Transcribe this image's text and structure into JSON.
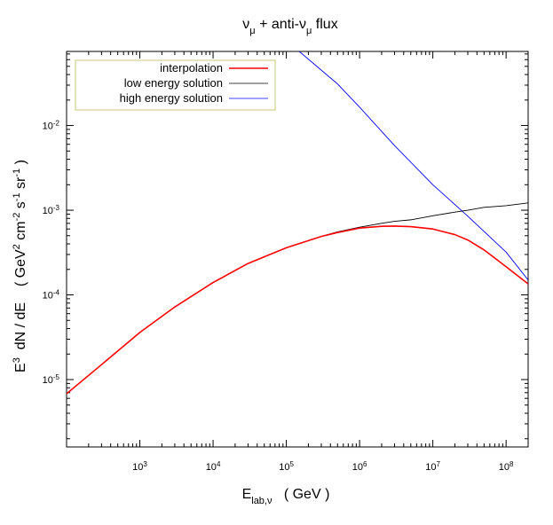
{
  "chart_data": {
    "type": "line",
    "title": {
      "main": "ν",
      "sub1": "μ",
      "mid": " + anti-ν",
      "sub2": "μ",
      "tail": "  flux"
    },
    "xlabel": {
      "main": "E",
      "sub": "lab,ν",
      "tail": "   ( GeV )"
    },
    "ylabel": {
      "p1": "E",
      "s1": "3",
      "p2": "  dN / dE    ( GeV",
      "s2": "2",
      "p3": " cm",
      "s3": "-2",
      "p4": " s",
      "s4": "-1",
      "p5": " sr",
      "s5": "-1",
      "p6": " )"
    },
    "xscale": "log",
    "yscale": "log",
    "xlim": [
      100,
      200000000
    ],
    "ylim": [
      1.6e-06,
      0.075
    ],
    "x_ticks": [
      {
        "value": 1000,
        "base": "10",
        "exp": "3"
      },
      {
        "value": 10000,
        "base": "10",
        "exp": "4"
      },
      {
        "value": 100000,
        "base": "10",
        "exp": "5"
      },
      {
        "value": 1000000,
        "base": "10",
        "exp": "6"
      },
      {
        "value": 10000000,
        "base": "10",
        "exp": "7"
      },
      {
        "value": 100000000,
        "base": "10",
        "exp": "8"
      }
    ],
    "y_ticks": [
      {
        "value": 1e-05,
        "base": "10",
        "exp": "-5"
      },
      {
        "value": 0.0001,
        "base": "10",
        "exp": "-4"
      },
      {
        "value": 0.001,
        "base": "10",
        "exp": "-3"
      },
      {
        "value": 0.01,
        "base": "10",
        "exp": "-2"
      }
    ],
    "grid": false,
    "legend_position": "top-left",
    "series": [
      {
        "name": "interpolation",
        "color": "#ff0000",
        "x": [
          100,
          300,
          1000,
          3000,
          10000,
          30000,
          100000,
          300000,
          500000,
          1000000,
          2000000,
          3000000,
          5000000,
          10000000,
          20000000,
          30000000,
          50000000,
          100000000,
          200000000
        ],
        "y": [
          6.8e-06,
          1.5e-05,
          3.6e-05,
          7.2e-05,
          0.00014,
          0.000235,
          0.00036,
          0.00049,
          0.000545,
          0.000615,
          0.000645,
          0.00065,
          0.00064,
          0.0006,
          0.000515,
          0.000445,
          0.00034,
          0.000215,
          0.000135
        ]
      },
      {
        "name": "low energy solution",
        "color": "#000000",
        "x": [
          100,
          300,
          1000,
          3000,
          10000,
          30000,
          100000,
          300000,
          500000,
          1000000,
          2000000,
          3000000,
          5000000,
          10000000,
          20000000,
          30000000,
          50000000,
          100000000,
          200000000
        ],
        "y": [
          6.8e-06,
          1.5e-05,
          3.6e-05,
          7.2e-05,
          0.00014,
          0.000235,
          0.00036,
          0.00049,
          0.000555,
          0.00063,
          0.0007,
          0.00074,
          0.00077,
          0.00086,
          0.00095,
          0.001,
          0.00108,
          0.00113,
          0.00122
        ]
      },
      {
        "name": "high energy solution",
        "color": "#0000ff",
        "x": [
          150000,
          500000,
          1000000,
          3000000,
          10000000,
          30000000,
          100000000,
          200000000
        ],
        "y": [
          0.075,
          0.031,
          0.0165,
          0.0058,
          0.002,
          0.00085,
          0.00032,
          0.00015
        ]
      }
    ]
  }
}
